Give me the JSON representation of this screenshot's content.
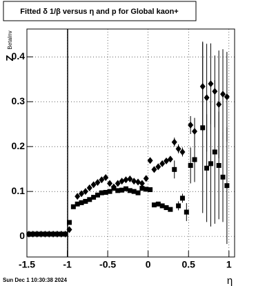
{
  "chart_data": {
    "type": "scatter",
    "title": "Fitted δ 1/β versus η and p for Global kaon+",
    "x_label": "η",
    "y_label": "Z",
    "y_label_sub": "BetaInv",
    "footer": "Sun Dec  1 10:30:38 2024",
    "grid": true,
    "xlim": [
      -1.5,
      1.07
    ],
    "ylim": [
      -0.046,
      0.462
    ],
    "xticks": [
      -1.5,
      -1,
      -0.5,
      0,
      0.5,
      1
    ],
    "yticks": [
      0,
      0.1,
      0.2,
      0.3,
      0.4
    ],
    "x": [
      -1.475,
      -1.425,
      -1.375,
      -1.325,
      -1.275,
      -1.225,
      -1.175,
      -1.125,
      -1.075,
      -1.025,
      -0.975,
      -0.925,
      -0.875,
      -0.825,
      -0.775,
      -0.725,
      -0.675,
      -0.625,
      -0.575,
      -0.525,
      -0.475,
      -0.425,
      -0.375,
      -0.325,
      -0.275,
      -0.225,
      -0.175,
      -0.125,
      -0.075,
      -0.025,
      0.025,
      0.075,
      0.125,
      0.175,
      0.225,
      0.275,
      0.325,
      0.375,
      0.425,
      0.475,
      0.525,
      0.575,
      0.625,
      0.675,
      0.725,
      0.775,
      0.825,
      0.875,
      0.925,
      0.975,
      1.025
    ],
    "series": [
      {
        "marker": "diamond",
        "color": "#000000",
        "values": [
          0.005,
          0.005,
          0.005,
          0.005,
          0.005,
          0.005,
          0.005,
          0.005,
          0.005,
          0.005,
          0.015,
          null,
          0.089,
          0.095,
          0.1,
          0.108,
          0.115,
          0.12,
          0.126,
          0.131,
          0.118,
          0.11,
          0.118,
          0.123,
          0.126,
          0.128,
          0.123,
          0.121,
          0.118,
          0.129,
          0.169,
          0.149,
          0.155,
          0.162,
          0.168,
          0.172,
          0.21,
          0.195,
          0.188,
          null,
          0.248,
          0.234,
          null,
          0.334,
          0.309,
          0.34,
          0.323,
          0.294,
          0.317,
          0.311,
          null
        ],
        "errors": [
          0.003,
          0.003,
          0.003,
          0.003,
          0.003,
          0.003,
          0.003,
          0.003,
          0.003,
          0.003,
          0.003,
          null,
          0.003,
          0.003,
          0.003,
          0.003,
          0.003,
          0.003,
          0.003,
          0.003,
          0.003,
          0.003,
          0.003,
          0.003,
          0.003,
          0.003,
          0.003,
          0.003,
          0.003,
          0.003,
          0.003,
          0.003,
          0.003,
          0.003,
          0.003,
          0.003,
          0.01,
          0.01,
          0.01,
          null,
          0.02,
          0.03,
          null,
          0.1,
          0.12,
          0.09,
          0.08,
          0.12,
          0.1,
          0.1,
          null
        ]
      },
      {
        "marker": "square",
        "color": "#000000",
        "values": [
          0.005,
          0.005,
          0.005,
          0.005,
          0.005,
          0.005,
          0.005,
          0.005,
          0.005,
          0.005,
          0.031,
          0.066,
          0.072,
          0.075,
          0.078,
          0.082,
          0.087,
          0.092,
          0.097,
          0.098,
          0.1,
          0.107,
          0.102,
          0.103,
          0.106,
          0.102,
          0.1,
          0.097,
          0.107,
          0.105,
          0.104,
          0.07,
          0.072,
          0.068,
          0.064,
          0.06,
          0.149,
          0.068,
          0.085,
          0.054,
          0.158,
          0.171,
          null,
          0.242,
          0.152,
          0.162,
          0.188,
          0.158,
          0.132,
          0.113,
          null
        ],
        "errors": [
          0.003,
          0.003,
          0.003,
          0.003,
          0.003,
          0.003,
          0.003,
          0.003,
          0.003,
          0.003,
          0.003,
          0.003,
          0.003,
          0.003,
          0.003,
          0.003,
          0.003,
          0.003,
          0.003,
          0.003,
          0.003,
          0.003,
          0.003,
          0.003,
          0.003,
          0.003,
          0.003,
          0.003,
          0.003,
          0.003,
          0.003,
          0.003,
          0.003,
          0.003,
          0.003,
          0.003,
          0.02,
          0.01,
          0.01,
          0.02,
          0.04,
          0.05,
          null,
          0.19,
          0.12,
          0.14,
          0.16,
          0.12,
          0.1,
          0.13,
          null
        ]
      }
    ]
  }
}
